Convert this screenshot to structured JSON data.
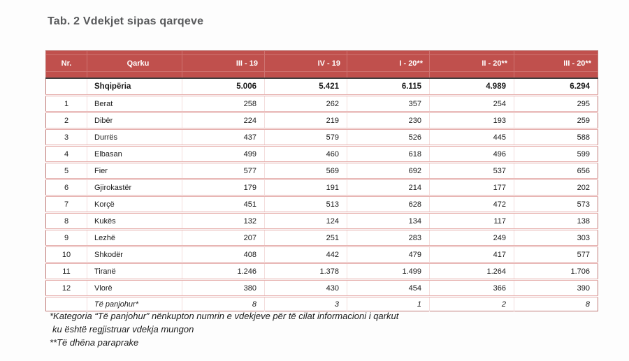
{
  "page": {
    "title": "Tab. 2 Vdekjet sipas qarqeve"
  },
  "colors": {
    "header_bg": "#c0504d",
    "header_text": "#ffffff",
    "header_gridline": "#ce7370",
    "row_separator": "#e6afad",
    "outer_border": "#bf7a77",
    "total_row_top_border": "#404040",
    "title_text": "#58595b",
    "body_text": "#1a1a1a"
  },
  "table": {
    "columns": [
      {
        "key": "nr",
        "label": "Nr."
      },
      {
        "key": "qarku",
        "label": "Qarku"
      },
      {
        "key": "iii19",
        "label": "III - 19"
      },
      {
        "key": "iv19",
        "label": "IV - 19"
      },
      {
        "key": "i20",
        "label": "I - 20**"
      },
      {
        "key": "ii20",
        "label": "II - 20**"
      },
      {
        "key": "iii20",
        "label": "III - 20**"
      }
    ],
    "total_row": {
      "nr": "",
      "qarku": "Shqipëria",
      "values": [
        "5.006",
        "5.421",
        "6.115",
        "4.989",
        "6.294"
      ]
    },
    "rows": [
      {
        "nr": "1",
        "qarku": "Berat",
        "values": [
          "258",
          "262",
          "357",
          "254",
          "295"
        ]
      },
      {
        "nr": "2",
        "qarku": "Dibër",
        "values": [
          "224",
          "219",
          "230",
          "193",
          "259"
        ]
      },
      {
        "nr": "3",
        "qarku": "Durrës",
        "values": [
          "437",
          "579",
          "526",
          "445",
          "588"
        ]
      },
      {
        "nr": "4",
        "qarku": "Elbasan",
        "values": [
          "499",
          "460",
          "618",
          "496",
          "599"
        ]
      },
      {
        "nr": "5",
        "qarku": "Fier",
        "values": [
          "577",
          "569",
          "692",
          "537",
          "656"
        ]
      },
      {
        "nr": "6",
        "qarku": "Gjirokastër",
        "values": [
          "179",
          "191",
          "214",
          "177",
          "202"
        ]
      },
      {
        "nr": "7",
        "qarku": "Korçë",
        "values": [
          "451",
          "513",
          "628",
          "472",
          "573"
        ]
      },
      {
        "nr": "8",
        "qarku": "Kukës",
        "values": [
          "132",
          "124",
          "134",
          "117",
          "138"
        ]
      },
      {
        "nr": "9",
        "qarku": "Lezhë",
        "values": [
          "207",
          "251",
          "283",
          "249",
          "303"
        ]
      },
      {
        "nr": "10",
        "qarku": "Shkodër",
        "values": [
          "408",
          "442",
          "479",
          "417",
          "577"
        ]
      },
      {
        "nr": "11",
        "qarku": "Tiranë",
        "values": [
          "1.246",
          "1.378",
          "1.499",
          "1.264",
          "1.706"
        ]
      },
      {
        "nr": "12",
        "qarku": "Vlorë",
        "values": [
          "380",
          "430",
          "454",
          "366",
          "390"
        ]
      }
    ],
    "unknown_row": {
      "nr": "",
      "qarku": "Të panjohur*",
      "values": [
        "8",
        "3",
        "1",
        "2",
        "8"
      ]
    }
  },
  "footnotes": {
    "line1": "*Kategoria “Të panjohur” nënkupton numrin e vdekjeve për të cilat informacioni i qarkut",
    "line2": "ku është regjistruar vdekja mungon",
    "line3": "**Të dhëna paraprake"
  }
}
